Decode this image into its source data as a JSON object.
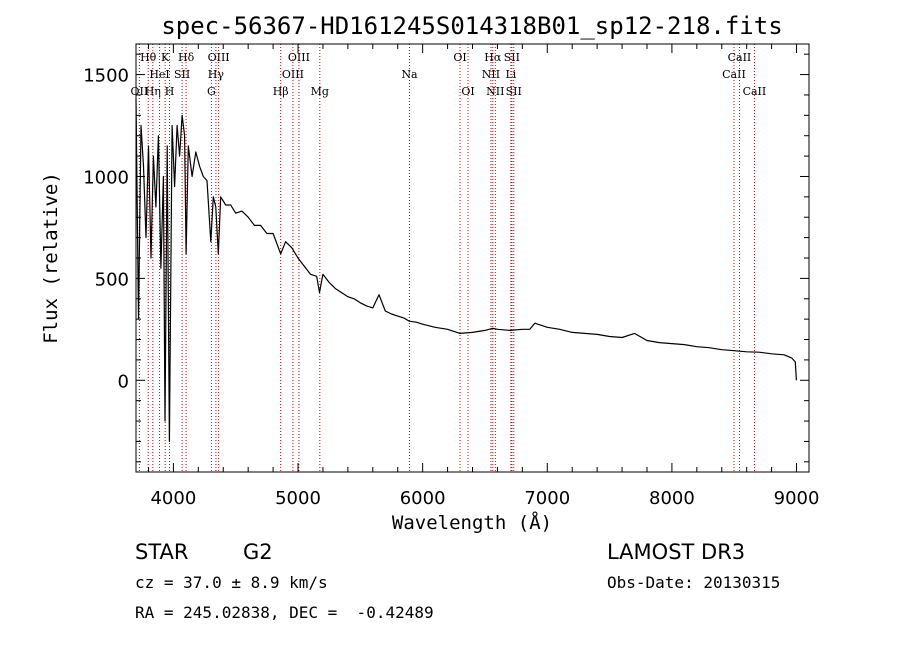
{
  "colors": {
    "spectrum": "#000000",
    "lines": "#cc0000",
    "axes": "#000000",
    "background": "#ffffff"
  },
  "chart_data": {
    "type": "line",
    "title": "spec-56367-HD161245S014318B01_sp12-218.fits",
    "xlabel": "Wavelength (Å)",
    "ylabel": "Flux (relative)",
    "xlim": [
      3700,
      9100
    ],
    "ylim": [
      -450,
      1650
    ],
    "xticks": [
      4000,
      5000,
      6000,
      7000,
      8000,
      9000
    ],
    "xtick_labels": [
      "4000",
      "5000",
      "6000",
      "7000",
      "8000",
      "9000"
    ],
    "yticks": [
      0,
      500,
      1000,
      1500
    ],
    "ytick_labels": [
      "0",
      "500",
      "1000",
      "1500"
    ],
    "series": [
      {
        "name": "spectrum",
        "x": [
          3700,
          3720,
          3740,
          3760,
          3780,
          3800,
          3820,
          3840,
          3860,
          3880,
          3900,
          3920,
          3933,
          3950,
          3968,
          3990,
          4010,
          4030,
          4050,
          4070,
          4090,
          4102,
          4120,
          4150,
          4180,
          4210,
          4240,
          4270,
          4300,
          4320,
          4340,
          4360,
          4380,
          4420,
          4460,
          4500,
          4550,
          4600,
          4650,
          4700,
          4750,
          4800,
          4861,
          4900,
          4950,
          5000,
          5050,
          5100,
          5150,
          5172,
          5200,
          5250,
          5300,
          5350,
          5400,
          5450,
          5500,
          5550,
          5600,
          5650,
          5700,
          5750,
          5800,
          5850,
          5893,
          5950,
          6000,
          6100,
          6200,
          6300,
          6400,
          6500,
          6563,
          6600,
          6700,
          6800,
          6860,
          6900,
          7000,
          7100,
          7200,
          7300,
          7400,
          7500,
          7600,
          7700,
          7800,
          7900,
          8000,
          8100,
          8200,
          8300,
          8400,
          8500,
          8600,
          8700,
          8800,
          8900,
          8960,
          8990,
          8999
        ],
        "y": [
          1380,
          300,
          1250,
          1050,
          700,
          1150,
          600,
          1100,
          850,
          1200,
          550,
          1000,
          -200,
          1150,
          -300,
          1250,
          950,
          1250,
          1100,
          1300,
          1200,
          620,
          1150,
          1000,
          1120,
          1050,
          1000,
          980,
          680,
          900,
          850,
          620,
          900,
          860,
          860,
          820,
          830,
          800,
          760,
          760,
          720,
          720,
          620,
          680,
          650,
          600,
          560,
          520,
          510,
          430,
          520,
          480,
          450,
          430,
          410,
          400,
          380,
          365,
          355,
          420,
          340,
          325,
          315,
          305,
          290,
          285,
          275,
          260,
          250,
          230,
          235,
          245,
          255,
          250,
          245,
          250,
          250,
          280,
          260,
          250,
          235,
          230,
          225,
          215,
          210,
          230,
          195,
          185,
          180,
          175,
          165,
          160,
          150,
          145,
          140,
          138,
          130,
          125,
          110,
          90,
          0
        ]
      }
    ],
    "line_markers": [
      {
        "label": "OII",
        "wl": 3727,
        "row": 3
      },
      {
        "label": "Hθ",
        "wl": 3798,
        "row": 1
      },
      {
        "label": "Hη",
        "wl": 3835,
        "row": 3
      },
      {
        "label": "HeI",
        "wl": 3889,
        "row": 2
      },
      {
        "label": "K",
        "wl": 3934,
        "row": 1
      },
      {
        "label": "SII",
        "wl": 4070,
        "row": 2
      },
      {
        "label": "Hδ",
        "wl": 4102,
        "row": 1
      },
      {
        "label": "H",
        "wl": 3969,
        "row": 3
      },
      {
        "label": "G",
        "wl": 4305,
        "row": 3
      },
      {
        "label": "Hγ",
        "wl": 4341,
        "row": 2
      },
      {
        "label": "OIII",
        "wl": 4363,
        "row": 1
      },
      {
        "label": "Hβ",
        "wl": 4861,
        "row": 3
      },
      {
        "label": "OIII",
        "wl": 4959,
        "row": 2
      },
      {
        "label": "OIII",
        "wl": 5007,
        "row": 1
      },
      {
        "label": "Mg",
        "wl": 5175,
        "row": 3
      },
      {
        "label": "Na",
        "wl": 5894,
        "row": 2
      },
      {
        "label": "OI",
        "wl": 6300,
        "row": 1
      },
      {
        "label": "OI",
        "wl": 6364,
        "row": 3
      },
      {
        "label": "NII",
        "wl": 6548,
        "row": 2
      },
      {
        "label": "Hα",
        "wl": 6563,
        "row": 1
      },
      {
        "label": "NII",
        "wl": 6583,
        "row": 3
      },
      {
        "label": "Li",
        "wl": 6708,
        "row": 2
      },
      {
        "label": "SII",
        "wl": 6716,
        "row": 1
      },
      {
        "label": "SII",
        "wl": 6731,
        "row": 3
      },
      {
        "label": "CaII",
        "wl": 8498,
        "row": 2
      },
      {
        "label": "CaII",
        "wl": 8542,
        "row": 1
      },
      {
        "label": "CaII",
        "wl": 8662,
        "row": 3
      }
    ]
  },
  "info": {
    "object_class": "STAR",
    "subclass": "G2",
    "redshift": "cz = 37.0 ± 8.9 km/s",
    "coordinates": "RA = 245.02838, DEC =  -0.42489",
    "survey": "LAMOST DR3",
    "obs_date": "Obs-Date: 20130315"
  }
}
